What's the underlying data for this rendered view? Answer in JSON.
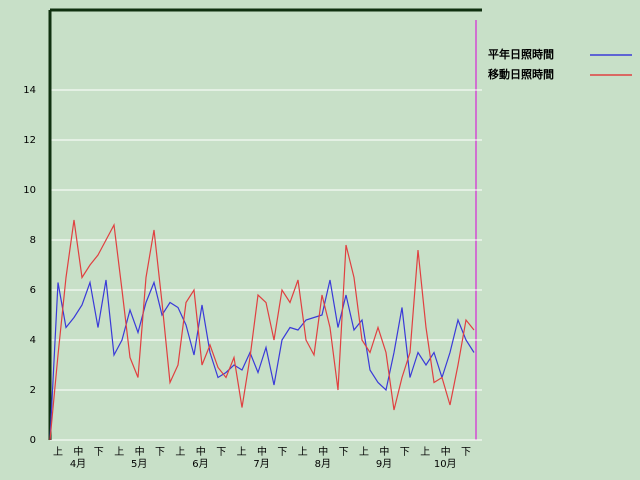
{
  "chart_data": {
    "type": "line",
    "ylim": [
      0,
      17.2
    ],
    "yticks": [
      0,
      2,
      4,
      6,
      8,
      10,
      12,
      14
    ],
    "grid": true,
    "dekad_labels": [
      "上",
      "中",
      "下",
      "上",
      "中",
      "下",
      "上",
      "中",
      "下",
      "上",
      "中",
      "下",
      "上",
      "中",
      "下",
      "上",
      "中",
      "下",
      "上",
      "中",
      "下"
    ],
    "month_labels": [
      "4月",
      "5月",
      "6月",
      "7月",
      "8月",
      "9月",
      "10月"
    ],
    "series": [
      {
        "name": "平年日照時間",
        "color": "#3a3ad8",
        "values": [
          0,
          6.3,
          4.5,
          4.9,
          5.4,
          6.3,
          4.5,
          6.4,
          3.4,
          4.0,
          5.2,
          4.3,
          5.5,
          6.3,
          5.0,
          5.5,
          5.3,
          4.6,
          3.4,
          5.4,
          3.5,
          2.5,
          2.7,
          3.0,
          2.8,
          3.5,
          2.7,
          3.7,
          2.2,
          4.0,
          4.5,
          4.4,
          4.8,
          4.9,
          5.0,
          6.4,
          4.5,
          5.8,
          4.4,
          4.8,
          2.8,
          2.3,
          2.0,
          3.5,
          5.3,
          2.5,
          3.5,
          3.0,
          3.5,
          2.5,
          3.5,
          4.8,
          4.0,
          3.5
        ]
      },
      {
        "name": "移動日照時間",
        "color": "#e04040",
        "values": [
          0,
          3.4,
          6.5,
          8.8,
          6.5,
          7.0,
          7.4,
          8.0,
          8.6,
          6.0,
          3.3,
          2.5,
          6.5,
          8.4,
          5.5,
          2.3,
          3.0,
          5.5,
          6.0,
          3.0,
          3.8,
          2.9,
          2.5,
          3.3,
          1.3,
          3.3,
          5.8,
          5.5,
          4.0,
          6.0,
          5.5,
          6.4,
          4.0,
          3.4,
          5.8,
          4.5,
          2.0,
          7.8,
          6.5,
          4.0,
          3.5,
          4.5,
          3.5,
          1.2,
          2.5,
          3.5,
          7.6,
          4.5,
          2.3,
          2.5,
          1.4,
          3.0,
          4.8,
          4.4
        ]
      }
    ]
  }
}
